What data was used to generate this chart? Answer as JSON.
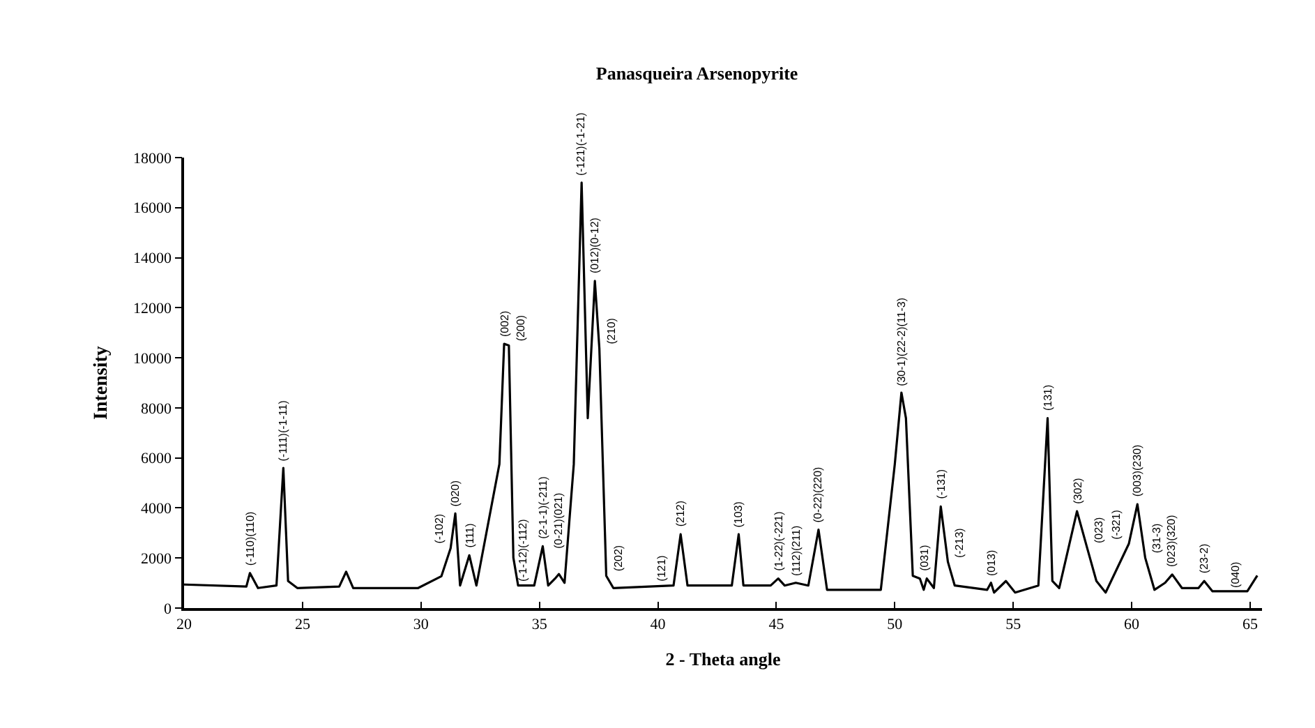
{
  "chart_data": {
    "type": "line",
    "title": "Panasqueira Arsenopyrite",
    "xlabel": "2 - Theta angle",
    "ylabel": "Intensity",
    "series": [
      {
        "color": "#000000",
        "x": [
          20.0,
          22.63,
          22.78,
          23.12,
          23.9,
          24.19,
          24.39,
          24.78,
          26.55,
          26.84,
          27.14,
          29.88,
          30.86,
          31.25,
          31.45,
          31.65,
          32.04,
          32.34,
          33.31,
          33.51,
          33.71,
          33.9,
          34.1,
          34.78,
          35.14,
          35.37,
          35.66,
          35.82,
          36.06,
          36.45,
          36.78,
          37.04,
          37.34,
          37.53,
          37.82,
          38.12,
          40.66,
          40.96,
          41.25,
          43.12,
          43.41,
          43.61,
          44.76,
          45.08,
          45.35,
          45.82,
          46.35,
          46.78,
          47.14,
          49.41,
          50.0,
          50.28,
          50.47,
          50.76,
          51.06,
          51.22,
          51.35,
          51.65,
          51.94,
          52.24,
          52.53,
          53.9,
          54.06,
          54.19,
          54.69,
          55.08,
          56.06,
          56.45,
          56.65,
          56.94,
          57.69,
          58.12,
          58.51,
          58.9,
          59.88,
          60.24,
          60.57,
          60.96,
          61.41,
          61.71,
          62.12,
          62.82,
          63.06,
          63.41,
          64.88,
          65.3
        ],
        "values": [
          940,
          860,
          1400,
          800,
          900,
          5600,
          1080,
          800,
          860,
          1450,
          800,
          800,
          1270,
          2390,
          3780,
          900,
          2110,
          900,
          5750,
          10560,
          10490,
          2010,
          900,
          900,
          2470,
          900,
          1180,
          1360,
          1010,
          5750,
          17000,
          7590,
          13070,
          10370,
          1290,
          800,
          900,
          2950,
          900,
          900,
          2950,
          900,
          900,
          1180,
          900,
          1010,
          900,
          3130,
          730,
          730,
          5750,
          8610,
          7590,
          1290,
          1180,
          730,
          1180,
          800,
          4060,
          1850,
          900,
          730,
          1010,
          620,
          1080,
          620,
          900,
          7590,
          1080,
          800,
          3870,
          2400,
          1080,
          620,
          2570,
          4150,
          2010,
          730,
          1010,
          1340,
          800,
          800,
          1080,
          670,
          670,
          1300
        ]
      }
    ],
    "xlim": [
      20,
      65.5
    ],
    "xticks": [
      20,
      25,
      30,
      35,
      40,
      45,
      50,
      55,
      60,
      65
    ],
    "ylim": [
      0,
      18000
    ],
    "yticks": [
      0,
      2000,
      4000,
      6000,
      8000,
      10000,
      12000,
      14000,
      16000,
      18000
    ],
    "annotations": [
      {
        "text": "(-110)(110)",
        "x": 22.78,
        "y": 1400
      },
      {
        "text": "(-111)(-1-11)",
        "x": 24.19,
        "y": 5600
      },
      {
        "text": "(-102)",
        "x": 31.25,
        "y": 2390
      },
      {
        "text": "(020)",
        "x": 31.45,
        "y": 3780
      },
      {
        "text": "(111)",
        "x": 32.04,
        "y": 2110
      },
      {
        "text": "(002)",
        "x": 33.51,
        "y": 10560
      },
      {
        "text": "(200)",
        "x": 33.71,
        "y": 10490
      },
      {
        "text": "(-1-12)(-112)",
        "x": 34.78,
        "y": 900
      },
      {
        "text": "(2-1-1)(-211)",
        "x": 35.14,
        "y": 2470
      },
      {
        "text": "(0-21)(021)",
        "x": 35.82,
        "y": 1360
      },
      {
        "text": "(-121)(-1-21)",
        "x": 36.78,
        "y": 17000
      },
      {
        "text": "(012)(0-12)",
        "x": 37.34,
        "y": 13070
      },
      {
        "text": "(210)",
        "x": 37.53,
        "y": 10370
      },
      {
        "text": "(202)",
        "x": 37.82,
        "y": 1290
      },
      {
        "text": "(121)",
        "x": 40.66,
        "y": 900
      },
      {
        "text": "(212)",
        "x": 40.96,
        "y": 2950
      },
      {
        "text": "(103)",
        "x": 43.41,
        "y": 2950
      },
      {
        "text": "(1-22)(-221)",
        "x": 45.08,
        "y": 1180
      },
      {
        "text": "(112)(211)",
        "x": 45.82,
        "y": 1010
      },
      {
        "text": "(0-22)(220)",
        "x": 46.78,
        "y": 3130
      },
      {
        "text": "(30-1)(22-2)(11-3)",
        "x": 50.28,
        "y": 8610
      },
      {
        "text": "(031)",
        "x": 50.76,
        "y": 1290
      },
      {
        "text": "(-131)",
        "x": 51.94,
        "y": 4060
      },
      {
        "text": "(-213)",
        "x": 52.24,
        "y": 1850
      },
      {
        "text": "(013)",
        "x": 54.06,
        "y": 1010
      },
      {
        "text": "(131)",
        "x": 56.45,
        "y": 7590
      },
      {
        "text": "(302)",
        "x": 57.69,
        "y": 3870
      },
      {
        "text": "(023)",
        "x": 58.12,
        "y": 2400
      },
      {
        "text": "(-321)",
        "x": 59.88,
        "y": 2570
      },
      {
        "text": "(003)(230)",
        "x": 60.24,
        "y": 4150
      },
      {
        "text": "(31-3)",
        "x": 60.57,
        "y": 2010
      },
      {
        "text": "(023)(320)",
        "x": 61.71,
        "y": 1340
      },
      {
        "text": "(23-2)",
        "x": 63.06,
        "y": 1080
      },
      {
        "text": "(040)",
        "x": 64.88,
        "y": 670
      }
    ]
  }
}
